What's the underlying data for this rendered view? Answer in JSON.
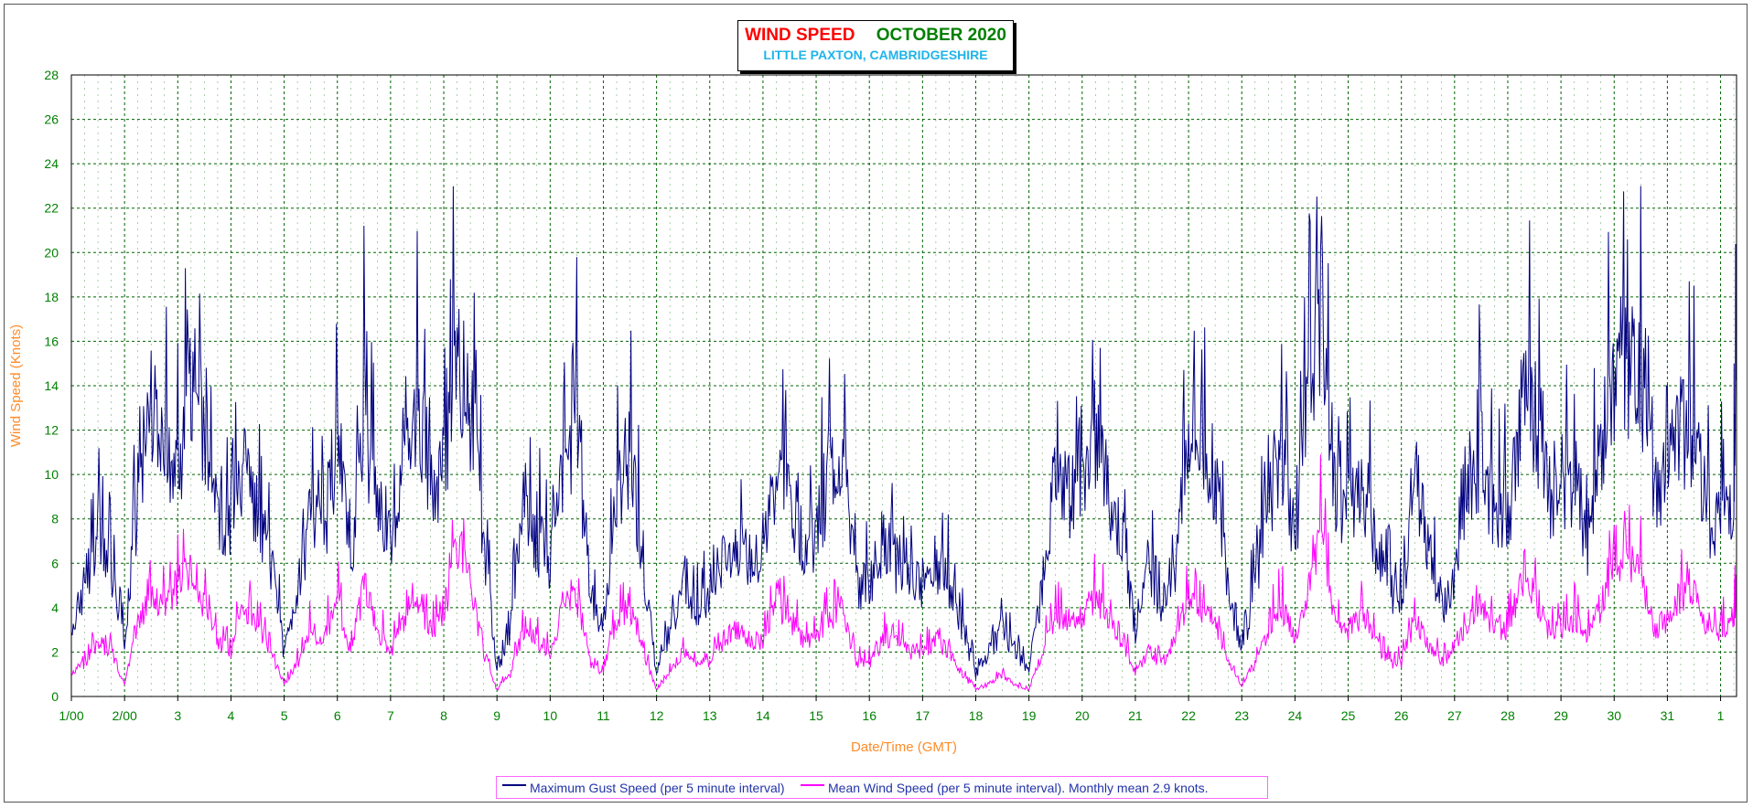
{
  "title": "WIND SPEED",
  "month": "OCTOBER 2020",
  "subtitle": "LITTLE PAXTON, CAMBRIDGESHIRE",
  "colors": {
    "title": "#ff0000",
    "month": "#008000",
    "subtitle": "#1fb4ea",
    "gust": "#000080",
    "mean": "#ff00ff",
    "axis_text": "#008000",
    "axis_label": "#ff8c2a",
    "grid": "#006400"
  },
  "chart_data": {
    "type": "line",
    "title": "WIND SPEED OCTOBER 2020",
    "subtitle": "LITTLE PAXTON, CAMBRIDGESHIRE",
    "xlabel": "Date/Time (GMT)",
    "ylabel": "Wind Speed (Knots)",
    "ylim": [
      0,
      28
    ],
    "yticks": [
      0,
      2,
      4,
      6,
      8,
      10,
      12,
      14,
      16,
      18,
      20,
      22,
      24,
      26,
      28
    ],
    "xlim_days": [
      1,
      32.3
    ],
    "x_ticks": [
      {
        "day": 1,
        "label": "1/00"
      },
      {
        "day": 2,
        "label": "2/00"
      },
      {
        "day": 3,
        "label": "3"
      },
      {
        "day": 4,
        "label": "4"
      },
      {
        "day": 5,
        "label": "5"
      },
      {
        "day": 6,
        "label": "6"
      },
      {
        "day": 7,
        "label": "7"
      },
      {
        "day": 8,
        "label": "8"
      },
      {
        "day": 9,
        "label": "9"
      },
      {
        "day": 10,
        "label": "10"
      },
      {
        "day": 11,
        "label": "11"
      },
      {
        "day": 12,
        "label": "12"
      },
      {
        "day": 13,
        "label": "13"
      },
      {
        "day": 14,
        "label": "14"
      },
      {
        "day": 15,
        "label": "15"
      },
      {
        "day": 16,
        "label": "16"
      },
      {
        "day": 17,
        "label": "17"
      },
      {
        "day": 18,
        "label": "18"
      },
      {
        "day": 19,
        "label": "19"
      },
      {
        "day": 20,
        "label": "20"
      },
      {
        "day": 21,
        "label": "21"
      },
      {
        "day": 22,
        "label": "22"
      },
      {
        "day": 23,
        "label": "23"
      },
      {
        "day": 24,
        "label": "24"
      },
      {
        "day": 25,
        "label": "25"
      },
      {
        "day": 26,
        "label": "26"
      },
      {
        "day": 27,
        "label": "27"
      },
      {
        "day": 28,
        "label": "28"
      },
      {
        "day": 29,
        "label": "29"
      },
      {
        "day": 30,
        "label": "30"
      },
      {
        "day": 31,
        "label": "31"
      },
      {
        "day": 32,
        "label": "1"
      }
    ],
    "grid": true,
    "legend_position": "bottom",
    "series": [
      {
        "name": "Maximum Gust Speed (per 5 minute interval)",
        "color": "#000080",
        "x_day": [
          1.0,
          1.25,
          1.5,
          1.75,
          2.0,
          2.25,
          2.5,
          2.75,
          3.0,
          3.25,
          3.5,
          3.75,
          4.0,
          4.25,
          4.5,
          4.75,
          5.0,
          5.25,
          5.5,
          5.75,
          6.0,
          6.25,
          6.5,
          6.75,
          7.0,
          7.25,
          7.5,
          7.75,
          8.0,
          8.25,
          8.5,
          8.75,
          9.0,
          9.25,
          9.5,
          9.75,
          10.0,
          10.25,
          10.5,
          10.75,
          11.0,
          11.25,
          11.5,
          11.75,
          12.0,
          12.25,
          12.5,
          12.75,
          13.0,
          13.25,
          13.5,
          13.75,
          14.0,
          14.25,
          14.5,
          14.75,
          15.0,
          15.25,
          15.5,
          15.75,
          16.0,
          16.25,
          16.5,
          16.75,
          17.0,
          17.25,
          17.5,
          17.75,
          18.0,
          18.25,
          18.5,
          18.75,
          19.0,
          19.25,
          19.5,
          19.75,
          20.0,
          20.25,
          20.5,
          20.75,
          21.0,
          21.25,
          21.5,
          21.75,
          22.0,
          22.25,
          22.5,
          22.75,
          23.0,
          23.25,
          23.5,
          23.75,
          24.0,
          24.25,
          24.5,
          24.75,
          25.0,
          25.25,
          25.5,
          25.75,
          26.0,
          26.25,
          26.5,
          26.75,
          27.0,
          27.25,
          27.5,
          27.75,
          28.0,
          28.25,
          28.5,
          28.75,
          29.0,
          29.25,
          29.5,
          29.75,
          30.0,
          30.25,
          30.5,
          30.75,
          31.0,
          31.25,
          31.5,
          31.75,
          32.0,
          32.25,
          32.3
        ],
        "values": [
          3,
          5,
          7,
          6,
          2,
          9,
          13,
          12,
          10,
          14,
          11,
          8,
          7,
          10,
          8,
          6,
          2,
          5,
          8,
          7,
          12,
          6,
          13,
          8,
          7,
          10,
          13,
          9,
          10,
          16,
          13,
          7,
          1,
          3,
          9,
          7,
          6,
          11,
          12,
          5,
          3,
          9,
          11,
          6,
          1,
          3,
          5,
          4,
          4,
          6,
          7,
          6,
          6,
          10,
          9,
          7,
          7,
          10,
          11,
          5,
          5,
          7,
          6,
          5,
          5,
          6,
          5,
          3,
          1,
          2,
          3,
          2,
          1,
          5,
          10,
          9,
          9,
          12,
          9,
          7,
          3,
          6,
          4,
          6,
          12,
          11,
          10,
          5,
          2,
          5,
          9,
          11,
          7,
          13,
          18,
          9,
          8,
          10,
          7,
          5,
          4,
          10,
          7,
          4,
          5,
          9,
          11,
          8,
          8,
          13,
          13,
          9,
          9,
          10,
          7,
          11,
          14,
          15,
          14,
          9,
          10,
          12,
          12,
          8,
          8,
          9,
          15
        ]
      },
      {
        "name": "Mean Wind Speed (per 5 minute interval). Monthly mean 2.9 knots.",
        "color": "#ff00ff",
        "x_day": [
          1.0,
          1.25,
          1.5,
          1.75,
          2.0,
          2.25,
          2.5,
          2.75,
          3.0,
          3.25,
          3.5,
          3.75,
          4.0,
          4.25,
          4.5,
          4.75,
          5.0,
          5.25,
          5.5,
          5.75,
          6.0,
          6.25,
          6.5,
          6.75,
          7.0,
          7.25,
          7.5,
          7.75,
          8.0,
          8.25,
          8.5,
          8.75,
          9.0,
          9.25,
          9.5,
          9.75,
          10.0,
          10.25,
          10.5,
          10.75,
          11.0,
          11.25,
          11.5,
          11.75,
          12.0,
          12.25,
          12.5,
          12.75,
          13.0,
          13.25,
          13.5,
          13.75,
          14.0,
          14.25,
          14.5,
          14.75,
          15.0,
          15.25,
          15.5,
          15.75,
          16.0,
          16.25,
          16.5,
          16.75,
          17.0,
          17.25,
          17.5,
          17.75,
          18.0,
          18.25,
          18.5,
          18.75,
          19.0,
          19.25,
          19.5,
          19.75,
          20.0,
          20.25,
          20.5,
          20.75,
          21.0,
          21.25,
          21.5,
          21.75,
          22.0,
          22.25,
          22.5,
          22.75,
          23.0,
          23.25,
          23.5,
          23.75,
          24.0,
          24.25,
          24.5,
          24.75,
          25.0,
          25.25,
          25.5,
          25.75,
          26.0,
          26.25,
          26.5,
          26.75,
          27.0,
          27.25,
          27.5,
          27.75,
          28.0,
          28.25,
          28.5,
          28.75,
          29.0,
          29.25,
          29.5,
          29.75,
          30.0,
          30.25,
          30.5,
          30.75,
          31.0,
          31.25,
          31.5,
          31.75,
          32.0,
          32.25,
          32.3
        ],
        "values": [
          1,
          1.5,
          2.5,
          2,
          0.5,
          3.5,
          4.5,
          4,
          5,
          6,
          4,
          2.5,
          2,
          4,
          3,
          2,
          0.5,
          1.5,
          3,
          2.5,
          4.5,
          2,
          5,
          3,
          2,
          3.5,
          4.5,
          3,
          3.5,
          7,
          5,
          2,
          0.3,
          1,
          3,
          2.5,
          2,
          4,
          4.5,
          1.5,
          1,
          3.5,
          4,
          2,
          0.3,
          1,
          2,
          1.5,
          1.5,
          2.5,
          3,
          2.5,
          2.5,
          4,
          3.5,
          2.5,
          2.5,
          3.5,
          4,
          1.5,
          1.5,
          2.5,
          2.5,
          2,
          2,
          2.5,
          2,
          1,
          0.3,
          0.5,
          1,
          0.5,
          0.3,
          2,
          3.5,
          3.5,
          3.5,
          4.5,
          3.5,
          2.5,
          1,
          2,
          1.5,
          2.5,
          4.5,
          4,
          3.5,
          1.5,
          0.5,
          1.5,
          3,
          4,
          2.5,
          5,
          7.5,
          3.5,
          3,
          3.5,
          2.5,
          1.5,
          1.5,
          3.5,
          2.5,
          1.5,
          2,
          3.5,
          4,
          3,
          3,
          5,
          4.5,
          3,
          3,
          3.5,
          2.5,
          4,
          5.5,
          6,
          5.5,
          3,
          3.5,
          4.5,
          4.5,
          3,
          3,
          3.5,
          5
        ]
      }
    ]
  },
  "legend": {
    "gust_label": "Maximum Gust Speed (per 5 minute interval)",
    "mean_label": "Mean Wind Speed (per 5 minute interval). Monthly mean 2.9 knots."
  }
}
